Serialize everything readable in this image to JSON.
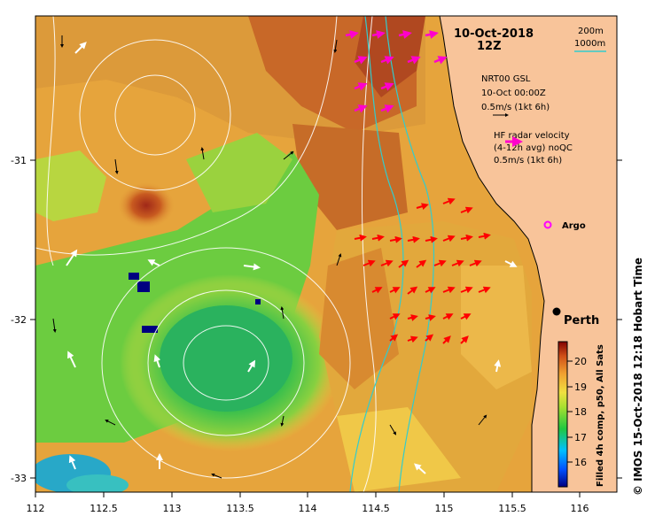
{
  "header": {
    "date": "10-Oct-2018",
    "time": "12Z"
  },
  "x_axis": {
    "ticks": [
      "112",
      "112.5",
      "113",
      "113.5",
      "114",
      "114.5",
      "115",
      "115.5",
      "116"
    ]
  },
  "y_axis": {
    "ticks": [
      "-31",
      "-32",
      "-33"
    ]
  },
  "bathymetry_legend": {
    "depth1": "200m",
    "depth2": "1000m",
    "color": "#33cccc"
  },
  "glider_legend": {
    "line1": "NRT00 GSL",
    "line2": "10-Oct 00:00Z",
    "line3": "0.5m/s (1kt 6h)",
    "arrow_color": "#000000"
  },
  "radar_legend": {
    "line1": "HF radar velocity",
    "line2": "(4-12h avg) noQC",
    "line3": "0.5m/s (1kt 6h)",
    "arrow_color": "#ff00cc"
  },
  "places": {
    "argo": "Argo",
    "perth": "Perth"
  },
  "colorbar": {
    "ticks": [
      "20",
      "19",
      "18",
      "17",
      "16"
    ],
    "caption": "Filled 4h comp, p50, All Sats",
    "range": [
      15.5,
      20.7
    ]
  },
  "side_text": "© IMOS 15-Oct-2018 12:18 Hobart Time",
  "colors": {
    "land": "#f8c49a",
    "ocean_warm": "#e3a23a",
    "ocean_cool": "#58c84a",
    "radar_arrow": "#ff0000",
    "cold_eddy": "#2fb85a"
  }
}
